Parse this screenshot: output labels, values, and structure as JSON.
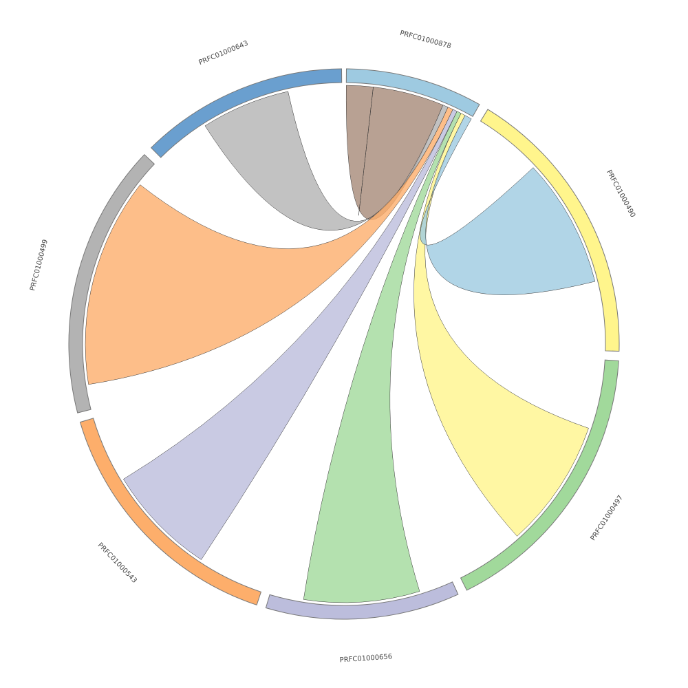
{
  "chart_data": {
    "type": "chord",
    "segments": [
      {
        "name": "PRFC01000878",
        "color": "#9ecae1",
        "value": 29
      },
      {
        "name": "PRFC01000490",
        "color": "#fff58c",
        "value": 60
      },
      {
        "name": "PRFC01000497",
        "color": "#a1d99b",
        "value": 60
      },
      {
        "name": "PRFC01000656",
        "color": "#bcbddc",
        "value": 41
      },
      {
        "name": "PRFC01000543",
        "color": "#fdae6b",
        "value": 55
      },
      {
        "name": "PRFC01000499",
        "color": "#b3b3b3",
        "value": 58
      },
      {
        "name": "PRFC01000643",
        "color": "#6a9fcf",
        "value": 44
      }
    ],
    "links": [
      {
        "source": 0,
        "target": 0,
        "source_value": 16,
        "target_value": 6,
        "color": "#a68a78"
      },
      {
        "source": 6,
        "target": 0,
        "source_value": 20,
        "target_value": 1.2,
        "color": "#b3b3b3"
      },
      {
        "source": 5,
        "target": 0,
        "source_value": 47,
        "target_value": 1.2,
        "color": "#fdae6b"
      },
      {
        "source": 4,
        "target": 0,
        "source_value": 25,
        "target_value": 1,
        "color": "#bcbddc"
      },
      {
        "source": 3,
        "target": 0,
        "source_value": 26,
        "target_value": 1,
        "color": "#a1d99b"
      },
      {
        "source": 2,
        "target": 0,
        "source_value": 29,
        "target_value": 1,
        "color": "#fff58c"
      },
      {
        "source": 1,
        "target": 0,
        "source_value": 29,
        "target_value": 1.6,
        "color": "#9ecae1"
      }
    ]
  }
}
